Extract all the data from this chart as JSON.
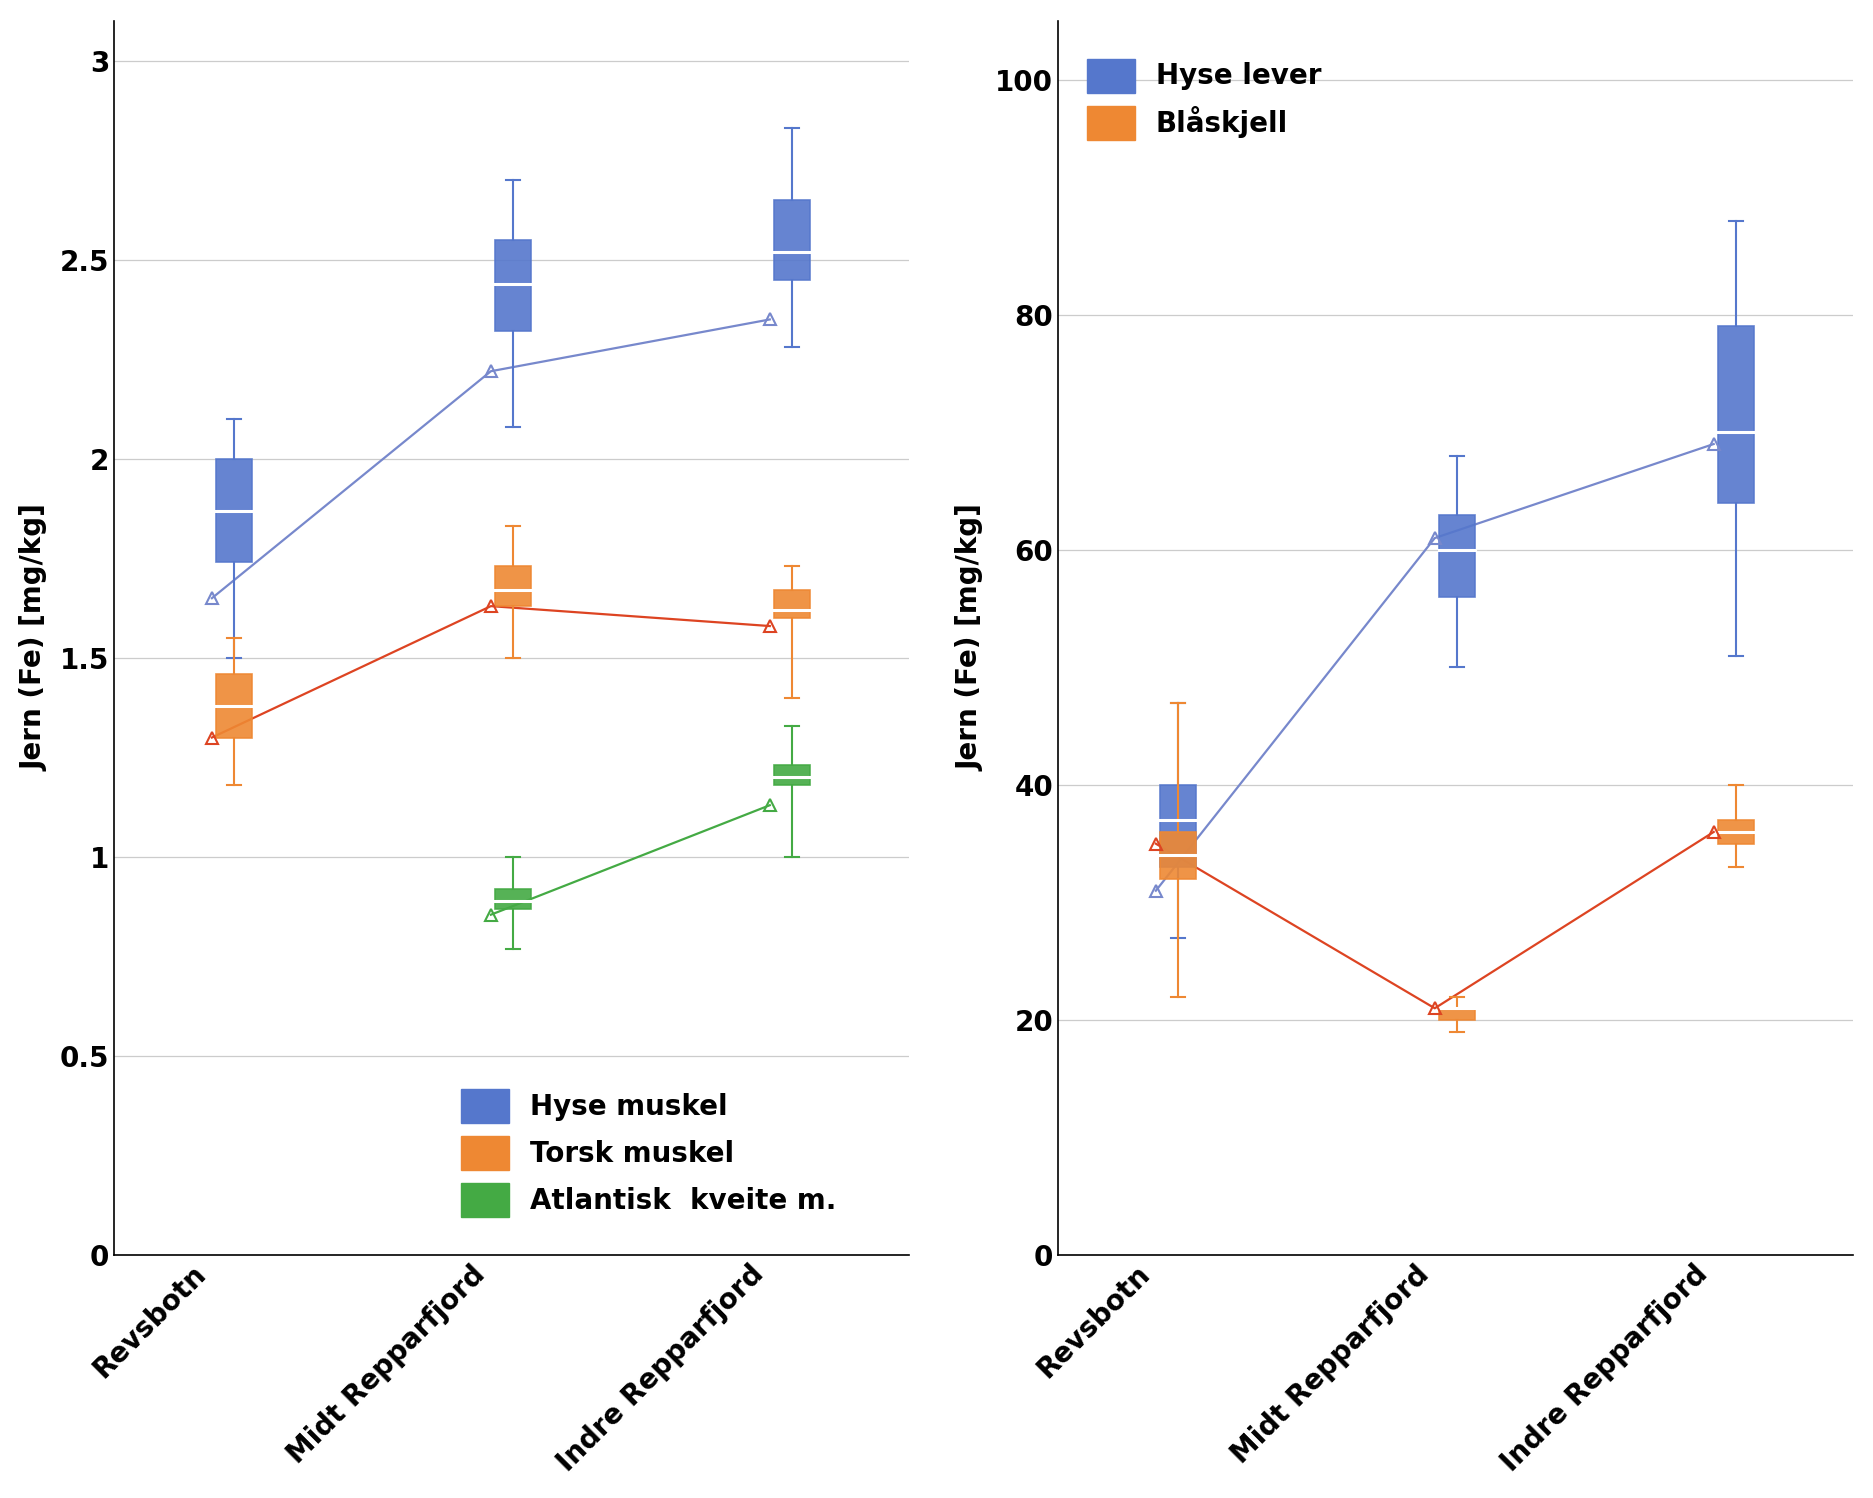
{
  "stations": [
    "Revsbotn",
    "Midt Repparfjord",
    "Indre Repparfjord"
  ],
  "left": {
    "ylabel": "Jern (Fe) [mg/kg]",
    "ylim": [
      0,
      3.1
    ],
    "yticks": [
      0,
      0.5,
      1.0,
      1.5,
      2.0,
      2.5,
      3.0
    ],
    "series": [
      {
        "label": "Hyse muskel",
        "box_color": "#5577cc",
        "line_color": "#7788cc",
        "stations_idx": [
          0,
          1,
          2
        ],
        "means": [
          1.65,
          2.22,
          2.35
        ],
        "medians": [
          1.87,
          2.44,
          2.52
        ],
        "q1": [
          1.74,
          2.32,
          2.45
        ],
        "q3": [
          2.0,
          2.55,
          2.65
        ],
        "whisker_low": [
          1.5,
          2.08,
          2.28
        ],
        "whisker_high": [
          2.1,
          2.7,
          2.83
        ]
      },
      {
        "label": "Torsk muskel",
        "box_color": "#ee8833",
        "line_color": "#dd4422",
        "stations_idx": [
          0,
          1,
          2
        ],
        "means": [
          1.3,
          1.63,
          1.58
        ],
        "medians": [
          1.38,
          1.67,
          1.62
        ],
        "q1": [
          1.3,
          1.63,
          1.6
        ],
        "q3": [
          1.46,
          1.73,
          1.67
        ],
        "whisker_low": [
          1.18,
          1.5,
          1.4
        ],
        "whisker_high": [
          1.55,
          1.83,
          1.73
        ]
      },
      {
        "label": "Atlantisk  kveite m.",
        "box_color": "#44aa44",
        "line_color": "#44aa44",
        "stations_idx": [
          1,
          2
        ],
        "means": [
          0.855,
          1.13
        ],
        "medians": [
          0.89,
          1.2
        ],
        "q1": [
          0.87,
          1.18
        ],
        "q3": [
          0.92,
          1.23
        ],
        "whisker_low": [
          0.77,
          1.0
        ],
        "whisker_high": [
          1.0,
          1.33
        ]
      }
    ]
  },
  "right": {
    "ylabel": "Jern (Fe) [mg/kg]",
    "ylim": [
      0,
      105
    ],
    "yticks": [
      0,
      20,
      40,
      60,
      80,
      100
    ],
    "series": [
      {
        "label": "Hyse lever",
        "box_color": "#5577cc",
        "line_color": "#7788cc",
        "stations_idx": [
          0,
          1,
          2
        ],
        "means": [
          31,
          61,
          69
        ],
        "medians": [
          37,
          60,
          70
        ],
        "q1": [
          33,
          56,
          64
        ],
        "q3": [
          40,
          63,
          79
        ],
        "whisker_low": [
          27,
          50,
          51
        ],
        "whisker_high": [
          47,
          68,
          88
        ]
      },
      {
        "label": "Blåskjell",
        "box_color": "#ee8833",
        "line_color": "#dd4422",
        "stations_idx": [
          0,
          1,
          2
        ],
        "means": [
          35,
          21,
          36
        ],
        "medians": [
          34,
          21,
          36
        ],
        "q1": [
          32,
          20,
          35
        ],
        "q3": [
          36,
          21,
          37
        ],
        "whisker_low": [
          22,
          19,
          33
        ],
        "whisker_high": [
          47,
          22,
          40
        ]
      }
    ]
  }
}
